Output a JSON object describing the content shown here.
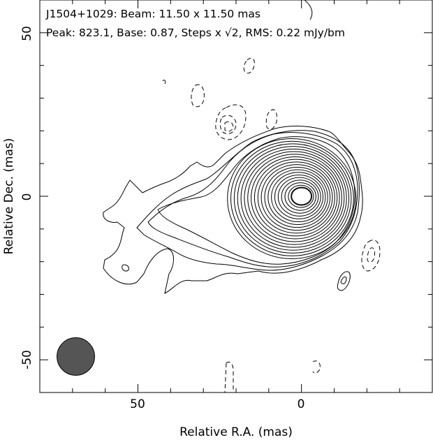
{
  "chart_data": {
    "type": "contour",
    "title_lines": [
      "J1504+1029: Beam: 11.50 x 11.50 mas",
      "Peak: 823.1, Base: 0.87, Steps x √2, RMS: 0.22 mJy/bm"
    ],
    "xlabel": "Relative R.A. (mas)",
    "ylabel": "Relative Dec. (mas)",
    "xlim": [
      80,
      -40
    ],
    "ylim": [
      -60,
      60
    ],
    "x_ticks": [
      50,
      0
    ],
    "y_ticks": [
      50,
      0,
      -50
    ],
    "source": "J1504+1029",
    "beam_mas": [
      11.5,
      11.5
    ],
    "beam_center": [
      69,
      -49
    ],
    "peak": 823.1,
    "base": 0.87,
    "step": "x √2",
    "rms": 0.22,
    "unit": "mJy/bm",
    "core_center": [
      0,
      0
    ]
  }
}
